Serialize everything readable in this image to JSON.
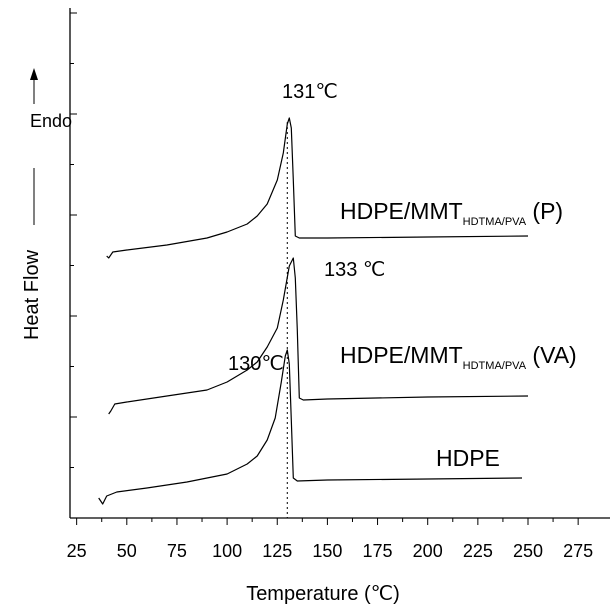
{
  "chart_data": {
    "type": "line",
    "title": "",
    "xlabel": "Temperature (℃)",
    "ylabel": "Heat Flow",
    "y_direction_label": "Endo",
    "xlim": [
      15,
      280
    ],
    "xticks": [
      "25",
      "50",
      "75",
      "100",
      "125",
      "150",
      "175",
      "200",
      "225",
      "250",
      "275"
    ],
    "y_ticks_labeled": false,
    "grid": false,
    "legend": "none",
    "reference_line_x": 130,
    "series": [
      {
        "label_main": "HDPE/MMT",
        "label_sub": "HDTMA/PVA",
        "label_suffix": " (P)",
        "points": [
          [
            40,
            256
          ],
          [
            41,
            258
          ],
          [
            43,
            252
          ],
          [
            50,
            250
          ],
          [
            70,
            245
          ],
          [
            90,
            238
          ],
          [
            100,
            232
          ],
          [
            110,
            224
          ],
          [
            115,
            216
          ],
          [
            120,
            204
          ],
          [
            125,
            180
          ],
          [
            128,
            153
          ],
          [
            130,
            124
          ],
          [
            131,
            118
          ],
          [
            132,
            128
          ],
          [
            133,
            180
          ],
          [
            134,
            236
          ],
          [
            136,
            238
          ],
          [
            150,
            238
          ],
          [
            200,
            237
          ],
          [
            250,
            236
          ]
        ]
      },
      {
        "label_main": "HDPE/MMT",
        "label_sub": "HDTMA/PVA",
        "label_suffix": " (VA)",
        "points": [
          [
            41,
            414
          ],
          [
            42,
            411
          ],
          [
            44,
            404
          ],
          [
            50,
            402
          ],
          [
            70,
            396
          ],
          [
            90,
            390
          ],
          [
            100,
            382
          ],
          [
            110,
            370
          ],
          [
            115,
            362
          ],
          [
            120,
            347
          ],
          [
            125,
            328
          ],
          [
            128,
            300
          ],
          [
            131,
            266
          ],
          [
            133,
            258
          ],
          [
            134,
            278
          ],
          [
            135,
            330
          ],
          [
            136,
            398
          ],
          [
            138,
            400
          ],
          [
            150,
            399
          ],
          [
            200,
            397
          ],
          [
            250,
            396
          ]
        ]
      },
      {
        "label_main": "HDPE",
        "label_sub": "",
        "label_suffix": "",
        "points": [
          [
            36,
            498
          ],
          [
            38,
            504
          ],
          [
            40,
            496
          ],
          [
            45,
            492
          ],
          [
            60,
            488
          ],
          [
            80,
            482
          ],
          [
            100,
            474
          ],
          [
            110,
            464
          ],
          [
            115,
            456
          ],
          [
            120,
            440
          ],
          [
            124,
            418
          ],
          [
            127,
            382
          ],
          [
            129,
            356
          ],
          [
            130,
            350
          ],
          [
            131,
            364
          ],
          [
            132,
            420
          ],
          [
            133,
            478
          ],
          [
            135,
            481
          ],
          [
            150,
            480
          ],
          [
            200,
            479
          ],
          [
            247,
            478
          ]
        ]
      }
    ],
    "annotations": [
      {
        "text": "131℃",
        "x": 131
      },
      {
        "text": "133 ℃",
        "x": 133
      },
      {
        "text": "130℃",
        "x": 130
      }
    ]
  }
}
